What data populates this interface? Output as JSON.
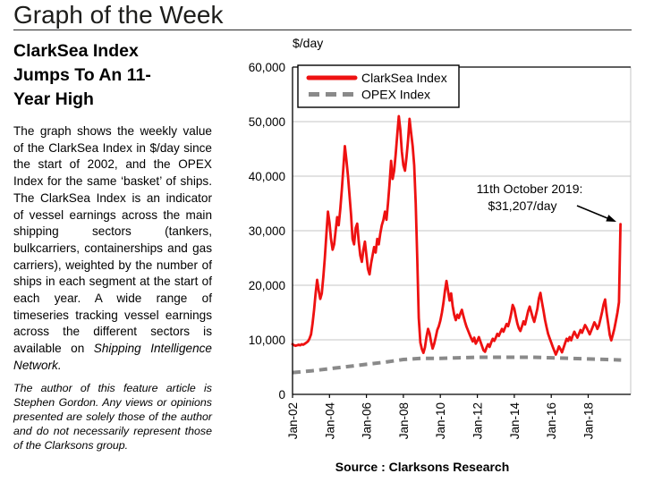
{
  "header": {
    "title": "Graph of the Week"
  },
  "sidebar": {
    "heading": "ClarkSea Index Jumps To An 11-Year High",
    "body_main": "The graph shows the weekly value of the ClarkSea Index in $/day since the start of 2002, and the OPEX Index for the same ‘basket’ of ships. The ClarkSea Index is an indicator of vessel earnings across the main shipping sectors (tankers, bulkcarriers, containerships and gas carriers), weighted by the number of ships in each segment at the start of each year. A wide range of timeseries tracking vessel earnings across the different sectors is available on ",
    "body_italic": "Shipping Intelligence Network.",
    "disclaimer": "The author of this feature article is Stephen Gordon. Any views or opinions presented are solely those of the author and do not necessarily represent those of the Clarksons group."
  },
  "chart_data": {
    "type": "line",
    "unit_label": "$/day",
    "source": "Source : Clarksons Research",
    "ylim": [
      0,
      60000
    ],
    "yticks": {
      "values": [
        0,
        10000,
        20000,
        30000,
        40000,
        50000,
        60000
      ],
      "labels": [
        "0",
        "10,000",
        "20,000",
        "30,000",
        "40,000",
        "50,000",
        "60,000"
      ]
    },
    "xticks": {
      "years": [
        2002,
        2004,
        2006,
        2008,
        2010,
        2012,
        2014,
        2016,
        2018
      ],
      "labels": [
        "Jan-02",
        "Jan-04",
        "Jan-06",
        "Jan-08",
        "Jan-10",
        "Jan-12",
        "Jan-14",
        "Jan-16",
        "Jan-18"
      ]
    },
    "x_start_year": 2002,
    "x_end_year": 2020.3,
    "grid": true,
    "legend_position": "top-left",
    "annotation": {
      "line1": "11th October 2019:",
      "line2": "$31,207/day"
    },
    "legend": [
      {
        "name": "ClarkSea Index"
      },
      {
        "name": "OPEX Index"
      }
    ],
    "series": [
      {
        "name": "ClarkSea Index",
        "color": "#ee1111",
        "style": "solid",
        "start_year": 2002,
        "interval_years": 0.08333,
        "values": [
          9200,
          9000,
          8900,
          9000,
          9100,
          9000,
          9200,
          9100,
          9300,
          9500,
          9700,
          10200,
          11000,
          13000,
          15500,
          18500,
          21000,
          19000,
          17500,
          18500,
          21500,
          25000,
          29500,
          33500,
          31500,
          28500,
          26500,
          27500,
          30000,
          32500,
          31000,
          34000,
          37500,
          41500,
          45500,
          43000,
          40000,
          36500,
          33000,
          28500,
          27500,
          30500,
          31300,
          28000,
          25500,
          24300,
          26500,
          28000,
          25500,
          23000,
          22000,
          24000,
          25500,
          27000,
          26000,
          28500,
          27500,
          29500,
          31000,
          32000,
          33500,
          32000,
          35000,
          38500,
          42800,
          39500,
          41000,
          44000,
          47500,
          51000,
          48500,
          44500,
          42000,
          41000,
          43500,
          46500,
          50500,
          48000,
          45500,
          42000,
          35000,
          25000,
          14000,
          9500,
          8300,
          7600,
          8600,
          10500,
          12000,
          11200,
          9600,
          8400,
          9300,
          10500,
          11800,
          12500,
          13500,
          15000,
          16800,
          19000,
          20800,
          19000,
          17200,
          18500,
          16200,
          14600,
          13600,
          14600,
          14000,
          14800,
          15500,
          14300,
          13300,
          12400,
          11700,
          11000,
          10300,
          9700,
          10400,
          9300,
          9800,
          10500,
          9700,
          8900,
          8100,
          7800,
          8600,
          9200,
          8700,
          9500,
          10200,
          9800,
          10400,
          11100,
          10700,
          11400,
          12000,
          11500,
          12200,
          12900,
          12500,
          13500,
          14800,
          16400,
          15700,
          14300,
          13000,
          12100,
          11600,
          12500,
          13400,
          12800,
          14000,
          15300,
          16100,
          15100,
          14100,
          13300,
          14500,
          15700,
          17600,
          18600,
          16900,
          15300,
          13600,
          12300,
          11100,
          10300,
          9500,
          8700,
          8000,
          7300,
          8000,
          8800,
          8300,
          7700,
          8500,
          9400,
          10200,
          9800,
          10500,
          9900,
          10800,
          11500,
          10900,
          10400,
          11100,
          11800,
          11300,
          12000,
          12700,
          12200,
          11600,
          11000,
          11700,
          12400,
          13200,
          12700,
          12000,
          12600,
          13800,
          15100,
          16500,
          17400,
          14900,
          12900,
          10900,
          9900,
          10900,
          12000,
          13500,
          15000,
          16900,
          31207
        ]
      },
      {
        "name": "OPEX Index",
        "color": "#8a8a8a",
        "style": "dashed",
        "x": [
          2002,
          2003,
          2004,
          2005,
          2006,
          2007,
          2008,
          2009,
          2010,
          2011,
          2012,
          2013,
          2014,
          2015,
          2016,
          2017,
          2018,
          2019,
          2019.78
        ],
        "values": [
          4000,
          4300,
          4700,
          5100,
          5500,
          5900,
          6400,
          6600,
          6600,
          6700,
          6800,
          6800,
          6800,
          6800,
          6700,
          6600,
          6500,
          6400,
          6300
        ]
      }
    ]
  }
}
